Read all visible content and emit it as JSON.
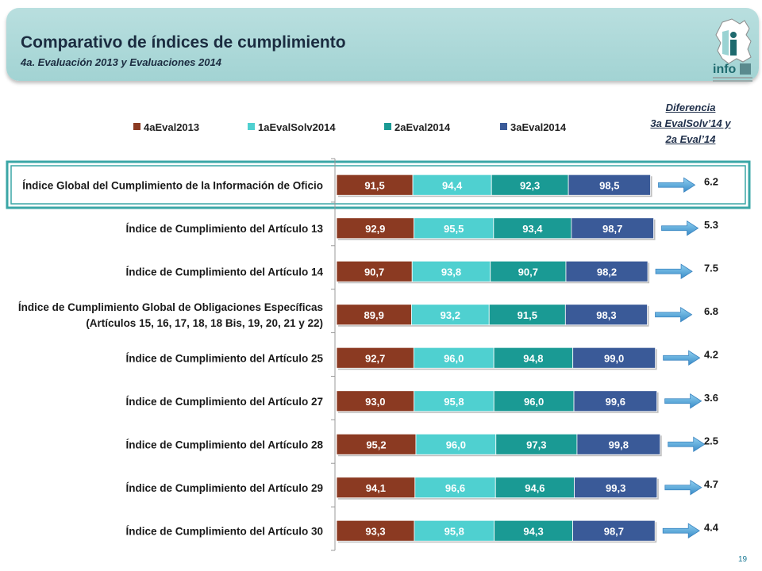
{
  "header": {
    "title": "Comparativo de índices de cumplimiento",
    "subtitle": "4a. Evaluación 2013 y Evaluaciones 2014",
    "logo_text": "info"
  },
  "diff_header": [
    "Diferencia",
    "3a EvalSolv’14 y",
    "2a Eval’14"
  ],
  "page_number": "19",
  "colors": {
    "4aEval2013": "#8b3a22",
    "1aEvalSolv2014": "#4fd0d0",
    "2aEval2014": "#1a9a94",
    "3aEval2014": "#3a5a98",
    "highlight": "#3aa6a6",
    "arrow": "#4aa0d8"
  },
  "chart_data": {
    "type": "bar",
    "orientation": "horizontal",
    "stacked": true,
    "legend_position": "top",
    "categories": [
      "Índice Global del Cumplimiento de la Información de Oficio",
      "Índice de Cumplimiento del Artículo 13",
      "Índice de Cumplimiento del Artículo 14",
      "Índice de Cumplimiento Global de Obligaciones Específicas\n(Artículos 15, 16, 17, 18, 18 Bis, 19, 20, 21 y 22)",
      "Índice de Cumplimiento del Artículo 25",
      "Índice de Cumplimiento del Artículo 27",
      "Índice de Cumplimiento del Artículo 28",
      "Índice de Cumplimiento del Artículo 29",
      "Índice de Cumplimiento del Artículo 30"
    ],
    "series": [
      {
        "name": "4aEval2013",
        "values": [
          91.5,
          92.9,
          90.7,
          89.9,
          92.7,
          93.0,
          95.2,
          94.1,
          93.3
        ],
        "labels": [
          "91,5",
          "92,9",
          "90,7",
          "89,9",
          "92,7",
          "93,0",
          "95,2",
          "94,1",
          "93,3"
        ]
      },
      {
        "name": "1aEvalSolv2014",
        "values": [
          94.4,
          95.5,
          93.8,
          93.2,
          96.0,
          95.8,
          96.0,
          96.6,
          95.8
        ],
        "labels": [
          "94,4",
          "95,5",
          "93,8",
          "93,2",
          "96,0",
          "95,8",
          "96,0",
          "96,6",
          "95,8"
        ]
      },
      {
        "name": "2aEval2014",
        "values": [
          92.3,
          93.4,
          90.7,
          91.5,
          94.8,
          96.0,
          97.3,
          94.6,
          94.3
        ],
        "labels": [
          "92,3",
          "93,4",
          "90,7",
          "91,5",
          "94,8",
          "96,0",
          "97,3",
          "94,6",
          "94,3"
        ]
      },
      {
        "name": "3aEval2014",
        "values": [
          98.5,
          98.7,
          98.2,
          98.3,
          99.0,
          99.6,
          99.8,
          99.3,
          98.7
        ],
        "labels": [
          "98,5",
          "98,7",
          "98,2",
          "98,3",
          "99,0",
          "99,6",
          "99,8",
          "99,3",
          "98,7"
        ]
      }
    ],
    "differences": [
      "6.2",
      "5.3",
      "7.5",
      "6.8",
      "4.2",
      "3.6",
      "2.5",
      "4.7",
      "4.4"
    ],
    "highlighted_category_index": 0
  }
}
